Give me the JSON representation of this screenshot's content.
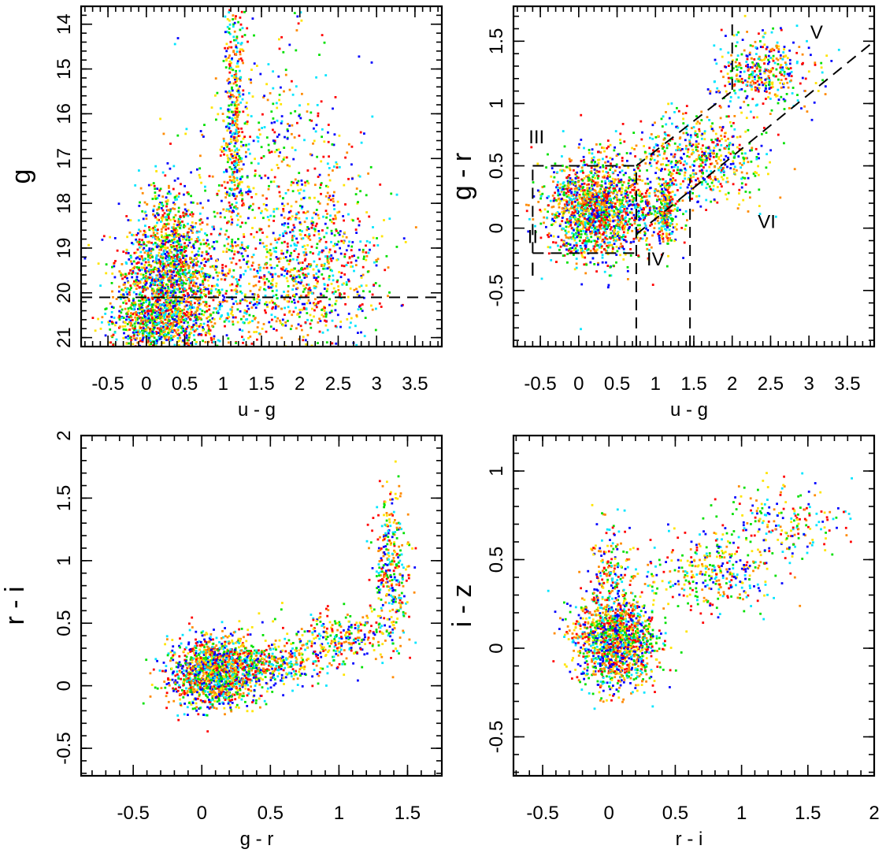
{
  "chart_data": [
    {
      "type": "scatter",
      "xlabel": "u - g",
      "ylabel": "g",
      "xlim": [
        -0.85,
        3.85
      ],
      "ylim": [
        21.2,
        13.6
      ],
      "y_inverted": true,
      "xticks": [
        -0.5,
        0,
        0.5,
        1,
        1.5,
        2,
        2.5,
        3,
        3.5
      ],
      "xtick_labels": [
        "-0.5",
        "0",
        "0.5",
        "1",
        "1.5",
        "2",
        "2.5",
        "3",
        "3.5"
      ],
      "yticks": [
        14,
        15,
        16,
        17,
        18,
        19,
        20,
        21
      ],
      "ytick_labels": [
        "14",
        "15",
        "16",
        "17",
        "18",
        "19",
        "20",
        "21"
      ],
      "guide_lines": [
        {
          "from": [
            -0.85,
            20.1
          ],
          "to": [
            3.85,
            20.1
          ],
          "style": "dashed"
        }
      ],
      "region_labels": [],
      "point_groups": [
        {
          "center": [
            0.3,
            19.8
          ],
          "spread": [
            0.35,
            0.75
          ],
          "count": 1500
        },
        {
          "center": [
            0.1,
            20.7
          ],
          "spread": [
            0.3,
            0.35
          ],
          "count": 500
        },
        {
          "center": [
            1.15,
            16.3
          ],
          "spread": [
            0.07,
            1.6
          ],
          "count": 420
        },
        {
          "center": [
            1.7,
            17.6
          ],
          "spread": [
            0.55,
            1.6
          ],
          "count": 600
        },
        {
          "center": [
            2.2,
            19.2
          ],
          "spread": [
            0.45,
            0.8
          ],
          "count": 450
        },
        {
          "center": [
            0.3,
            18.7
          ],
          "spread": [
            0.2,
            0.6
          ],
          "count": 300
        },
        {
          "center": [
            1.6,
            20.2
          ],
          "spread": [
            0.6,
            0.5
          ],
          "count": 350
        }
      ],
      "series_colors": [
        "#ff0000",
        "#0000ff",
        "#00e000",
        "#00e5ff",
        "#ffe400",
        "#ff8a00"
      ]
    },
    {
      "type": "scatter",
      "xlabel": "u - g",
      "ylabel": "g - r",
      "xlim": [
        -0.85,
        3.85
      ],
      "ylim": [
        -0.95,
        1.78
      ],
      "xticks": [
        -0.5,
        0,
        0.5,
        1,
        1.5,
        2,
        2.5,
        3,
        3.5
      ],
      "xtick_labels": [
        "-0.5",
        "0",
        "0.5",
        "1",
        "1.5",
        "2",
        "2.5",
        "3",
        "3.5"
      ],
      "yticks": [
        -0.5,
        0,
        0.5,
        1,
        1.5
      ],
      "ytick_labels": [
        "-0.5",
        "0",
        "0.5",
        "1",
        "1.5"
      ],
      "guide_lines": [
        {
          "from": [
            -0.6,
            0.5
          ],
          "to": [
            0.75,
            0.5
          ],
          "style": "dashed"
        },
        {
          "from": [
            -0.6,
            -0.2
          ],
          "to": [
            0.75,
            -0.2
          ],
          "style": "dashed"
        },
        {
          "from": [
            -0.6,
            -0.2
          ],
          "to": [
            -0.6,
            0.5
          ],
          "style": "dashed"
        },
        {
          "from": [
            0.75,
            -0.95
          ],
          "to": [
            0.75,
            0.5
          ],
          "style": "dashed"
        },
        {
          "from": [
            1.45,
            -0.95
          ],
          "to": [
            1.45,
            0.4
          ],
          "style": "dashed"
        },
        {
          "from": [
            0.75,
            0.5
          ],
          "to": [
            2.0,
            1.1
          ],
          "style": "dashed"
        },
        {
          "from": [
            2.0,
            1.78
          ],
          "to": [
            2.0,
            1.1
          ],
          "style": "dashed"
        },
        {
          "from": [
            0.75,
            -0.05
          ],
          "to": [
            3.85,
            1.5
          ],
          "style": "dashed"
        }
      ],
      "region_labels": [
        {
          "text": "I",
          "at": [
            -0.6,
            -0.38
          ]
        },
        {
          "text": "II",
          "at": [
            -0.6,
            -0.12
          ]
        },
        {
          "text": "III",
          "at": [
            -0.55,
            0.68
          ]
        },
        {
          "text": "IV",
          "at": [
            1.0,
            -0.3
          ]
        },
        {
          "text": "V",
          "at": [
            3.1,
            1.52
          ]
        },
        {
          "text": "VI",
          "at": [
            2.45,
            0.0
          ]
        }
      ],
      "point_groups": [
        {
          "center": [
            0.2,
            0.15
          ],
          "spread": [
            0.3,
            0.2
          ],
          "count": 1500
        },
        {
          "center": [
            1.15,
            0.15
          ],
          "spread": [
            0.05,
            0.13
          ],
          "count": 200
        },
        {
          "center": [
            1.55,
            0.55
          ],
          "spread": [
            0.45,
            0.18
          ],
          "count": 600
        },
        {
          "center": [
            2.4,
            1.25
          ],
          "spread": [
            0.3,
            0.15
          ],
          "count": 400
        },
        {
          "center": [
            0.9,
            0.1
          ],
          "spread": [
            0.2,
            0.15
          ],
          "count": 200
        }
      ],
      "series_colors": [
        "#ff0000",
        "#0000ff",
        "#00e000",
        "#00e5ff",
        "#ffe400",
        "#ff8a00"
      ]
    },
    {
      "type": "scatter",
      "xlabel": "g - r",
      "ylabel": "r - i",
      "xlim": [
        -0.88,
        1.75
      ],
      "ylim": [
        -0.72,
        2.0
      ],
      "xticks": [
        -0.5,
        0,
        0.5,
        1,
        1.5
      ],
      "xtick_labels": [
        "-0.5",
        "0",
        "0.5",
        "1",
        "1.5"
      ],
      "yticks": [
        -0.5,
        0,
        0.5,
        1,
        1.5,
        2
      ],
      "ytick_labels": [
        "-0.5",
        "0",
        "0.5",
        "1",
        "1.5",
        "2"
      ],
      "guide_lines": [],
      "region_labels": [],
      "point_groups": [
        {
          "center": [
            0.1,
            0.1
          ],
          "spread": [
            0.17,
            0.14
          ],
          "count": 1400
        },
        {
          "center": [
            0.5,
            0.18
          ],
          "spread": [
            0.2,
            0.08
          ],
          "count": 350
        },
        {
          "center": [
            1.0,
            0.38
          ],
          "spread": [
            0.2,
            0.1
          ],
          "count": 300
        },
        {
          "center": [
            1.38,
            0.95
          ],
          "spread": [
            0.07,
            0.3
          ],
          "count": 320
        }
      ],
      "series_colors": [
        "#ff0000",
        "#0000ff",
        "#00e000",
        "#00e5ff",
        "#ffe400",
        "#ff8a00"
      ]
    },
    {
      "type": "scatter",
      "xlabel": "r - i",
      "ylabel": "i - z",
      "xlim": [
        -0.72,
        2.0
      ],
      "ylim": [
        -0.72,
        1.2
      ],
      "xticks": [
        -0.5,
        0,
        0.5,
        1,
        1.5,
        2
      ],
      "xtick_labels": [
        "-0.5",
        "0",
        "0.5",
        "1",
        "1.5",
        "2"
      ],
      "yticks": [
        -0.5,
        0,
        0.5,
        1
      ],
      "ytick_labels": [
        "-0.5",
        "0",
        "0.5",
        "1"
      ],
      "guide_lines": [],
      "region_labels": [],
      "point_groups": [
        {
          "center": [
            0.05,
            0.05
          ],
          "spread": [
            0.15,
            0.13
          ],
          "count": 1400
        },
        {
          "center": [
            0.0,
            0.45
          ],
          "spread": [
            0.08,
            0.12
          ],
          "count": 150
        },
        {
          "center": [
            0.75,
            0.42
          ],
          "spread": [
            0.25,
            0.1
          ],
          "count": 350
        },
        {
          "center": [
            1.35,
            0.72
          ],
          "spread": [
            0.25,
            0.1
          ],
          "count": 200
        }
      ],
      "series_colors": [
        "#ff0000",
        "#0000ff",
        "#00e000",
        "#00e5ff",
        "#ffe400",
        "#ff8a00"
      ]
    }
  ]
}
